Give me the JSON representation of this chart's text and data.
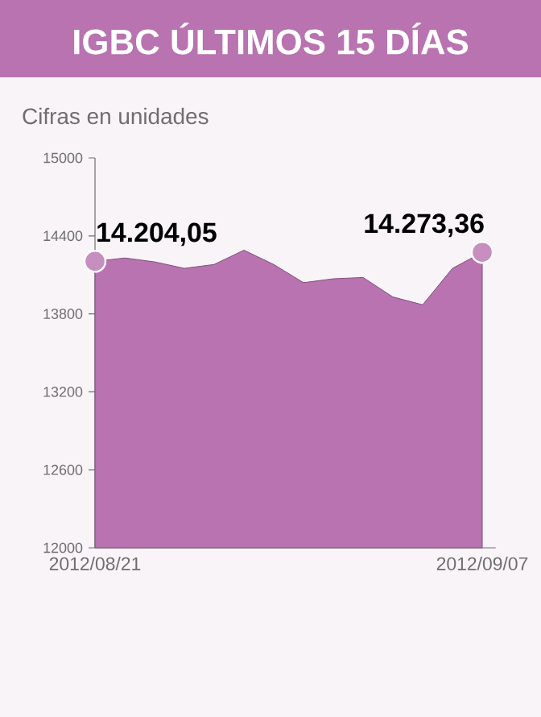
{
  "chart_data": {
    "type": "area",
    "title": "IGBC ÚLTIMOS 15 DÍAS",
    "subtitle": "Cifras en unidades",
    "categories": [
      "2012/08/21",
      null,
      null,
      null,
      null,
      null,
      null,
      null,
      null,
      null,
      null,
      null,
      null,
      "2012/09/07"
    ],
    "values": [
      14204.05,
      14230,
      14200,
      14150,
      14180,
      14290,
      14180,
      14040,
      14070,
      14080,
      13930,
      13870,
      14150,
      14273.36
    ],
    "value_labels": [
      "14.204,05",
      null,
      null,
      null,
      null,
      null,
      null,
      null,
      null,
      null,
      null,
      null,
      null,
      "14.273,36"
    ],
    "color": "#b873b0",
    "ylim": [
      12000,
      15000
    ],
    "yticks": [
      12000,
      12600,
      13200,
      13800,
      14400,
      15000
    ],
    "grid": false
  }
}
